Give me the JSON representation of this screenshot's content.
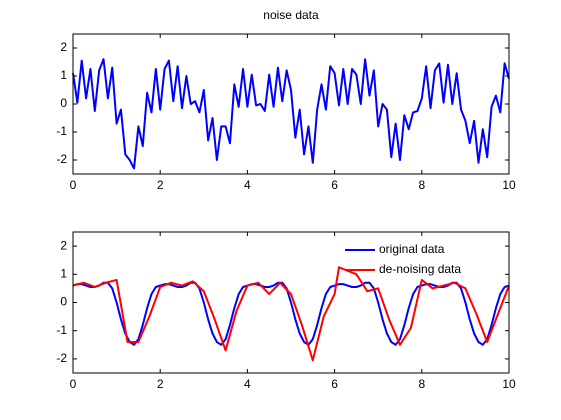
{
  "chart_data": [
    {
      "type": "line",
      "title": "noise data",
      "x": [
        0,
        0.1,
        0.2,
        0.3,
        0.4,
        0.5,
        0.6,
        0.7,
        0.8,
        0.9,
        1,
        1.1,
        1.2,
        1.3,
        1.4,
        1.5,
        1.6,
        1.7,
        1.8,
        1.9,
        2,
        2.1,
        2.2,
        2.3,
        2.4,
        2.5,
        2.6,
        2.7,
        2.8,
        2.9,
        3,
        3.1,
        3.2,
        3.3,
        3.4,
        3.5,
        3.6,
        3.7,
        3.8,
        3.9,
        4,
        4.1,
        4.2,
        4.3,
        4.4,
        4.5,
        4.6,
        4.7,
        4.8,
        4.9,
        5,
        5.1,
        5.2,
        5.3,
        5.4,
        5.5,
        5.6,
        5.7,
        5.8,
        5.9,
        6,
        6.1,
        6.2,
        6.3,
        6.4,
        6.5,
        6.6,
        6.7,
        6.8,
        6.9,
        7,
        7.1,
        7.2,
        7.3,
        7.4,
        7.5,
        7.6,
        7.7,
        7.8,
        7.9,
        8,
        8.1,
        8.2,
        8.3,
        8.4,
        8.5,
        8.6,
        8.7,
        8.8,
        8.9,
        9,
        9.1,
        9.2,
        9.3,
        9.4,
        9.5,
        9.6,
        9.7,
        9.8,
        9.9,
        10
      ],
      "series": [
        {
          "color": "#0000ff",
          "values": [
            1.1,
            0.05,
            1.55,
            0.2,
            1.25,
            -0.25,
            1.2,
            1.6,
            0.2,
            1.3,
            -0.7,
            -0.2,
            -1.8,
            -2.0,
            -2.3,
            -0.8,
            -1.5,
            0.4,
            -0.3,
            1.25,
            -0.2,
            1.25,
            1.55,
            0.1,
            1.35,
            -0.15,
            1.0,
            0.0,
            0.1,
            -0.3,
            0.5,
            -1.3,
            -0.5,
            -2.0,
            -0.8,
            -0.8,
            -1.4,
            0.7,
            -0.1,
            1.25,
            -0.1,
            1.05,
            -0.05,
            0.0,
            -0.25,
            1.05,
            -0.1,
            1.3,
            0.1,
            1.2,
            0.5,
            -1.2,
            -0.2,
            -1.8,
            -0.8,
            -2.1,
            -0.2,
            0.7,
            -0.2,
            1.35,
            1.1,
            -0.05,
            1.25,
            0.0,
            1.25,
            1.05,
            0.0,
            1.6,
            0.3,
            1.2,
            -0.8,
            0.0,
            -0.2,
            -1.9,
            -0.7,
            -2.0,
            -0.4,
            -0.9,
            -0.3,
            -0.25,
            0.2,
            1.35,
            -0.15,
            1.2,
            1.45,
            0.05,
            1.4,
            0.0,
            1.1,
            -0.2,
            -0.6,
            -1.4,
            -0.6,
            -2.1,
            -0.9,
            -1.9,
            -0.1,
            0.3,
            -0.3,
            1.45,
            0.9
          ]
        }
      ],
      "xlim": [
        0,
        10
      ],
      "xticks": [
        0,
        2,
        4,
        6,
        8,
        10
      ],
      "ylim": [
        -2.5,
        2.5
      ],
      "yticks": [
        -2,
        -1,
        0,
        1,
        2
      ]
    },
    {
      "type": "line",
      "x": [
        0,
        0.1,
        0.2,
        0.3,
        0.4,
        0.5,
        0.6,
        0.7,
        0.8,
        0.9,
        1,
        1.1,
        1.2,
        1.3,
        1.4,
        1.5,
        1.6,
        1.7,
        1.8,
        1.9,
        2,
        2.1,
        2.2,
        2.3,
        2.4,
        2.5,
        2.6,
        2.7,
        2.8,
        2.9,
        3,
        3.1,
        3.2,
        3.3,
        3.4,
        3.5,
        3.6,
        3.7,
        3.8,
        3.9,
        4,
        4.1,
        4.2,
        4.3,
        4.4,
        4.5,
        4.6,
        4.7,
        4.8,
        4.9,
        5,
        5.1,
        5.2,
        5.3,
        5.4,
        5.5,
        5.6,
        5.7,
        5.8,
        5.9,
        6,
        6.1,
        6.2,
        6.3,
        6.4,
        6.5,
        6.6,
        6.7,
        6.8,
        6.9,
        7,
        7.1,
        7.2,
        7.3,
        7.4,
        7.5,
        7.6,
        7.7,
        7.8,
        7.9,
        8,
        8.1,
        8.2,
        8.3,
        8.4,
        8.5,
        8.6,
        8.7,
        8.8,
        8.9,
        9,
        9.1,
        9.2,
        9.3,
        9.4,
        9.5,
        9.6,
        9.7,
        9.8,
        9.9,
        10
      ],
      "series": [
        {
          "name": "original data",
          "color": "#0000ff",
          "values": [
            0.6,
            0.65,
            0.65,
            0.6,
            0.55,
            0.55,
            0.6,
            0.7,
            0.7,
            0.5,
            0,
            -0.6,
            -1.1,
            -1.4,
            -1.5,
            -1.3,
            -0.8,
            -0.2,
            0.3,
            0.55,
            0.6,
            0.65,
            0.65,
            0.6,
            0.55,
            0.55,
            0.6,
            0.7,
            0.7,
            0.5,
            0,
            -0.6,
            -1.1,
            -1.4,
            -1.5,
            -1.3,
            -0.8,
            -0.2,
            0.3,
            0.55,
            0.6,
            0.65,
            0.65,
            0.6,
            0.55,
            0.55,
            0.6,
            0.7,
            0.7,
            0.5,
            0,
            -0.6,
            -1.1,
            -1.4,
            -1.5,
            -1.3,
            -0.8,
            -0.2,
            0.3,
            0.55,
            0.6,
            0.65,
            0.65,
            0.6,
            0.55,
            0.55,
            0.6,
            0.7,
            0.7,
            0.5,
            0,
            -0.6,
            -1.1,
            -1.4,
            -1.5,
            -1.3,
            -0.8,
            -0.2,
            0.3,
            0.55,
            0.6,
            0.65,
            0.65,
            0.6,
            0.55,
            0.55,
            0.6,
            0.7,
            0.7,
            0.5,
            0,
            -0.6,
            -1.1,
            -1.4,
            -1.5,
            -1.3,
            -0.8,
            -0.2,
            0.3,
            0.55,
            0.6
          ]
        },
        {
          "name": "de-noising data",
          "color": "#ff0000",
          "x": [
            0,
            0.25,
            0.5,
            0.75,
            1,
            1.25,
            1.5,
            1.75,
            2,
            2.25,
            2.5,
            2.75,
            3,
            3.25,
            3.5,
            3.75,
            4,
            4.25,
            4.5,
            4.75,
            5,
            5.25,
            5.5,
            5.75,
            6,
            6.1,
            6.5,
            6.75,
            7,
            7.25,
            7.5,
            7.75,
            8,
            8.25,
            8.5,
            8.75,
            9,
            9.25,
            9.5,
            9.75,
            10
          ],
          "values": [
            0.6,
            0.7,
            0.55,
            0.7,
            0.8,
            -1.4,
            -1.4,
            -0.5,
            0.55,
            0.7,
            0.6,
            0.75,
            0.4,
            -0.6,
            -1.7,
            -0.3,
            0.6,
            0.7,
            0.3,
            0.7,
            0.3,
            -0.8,
            -2.05,
            -0.5,
            0.3,
            1.25,
            1.0,
            0.4,
            0.5,
            -0.6,
            -1.5,
            -0.9,
            0.8,
            0.5,
            0.6,
            0.7,
            0.5,
            -0.4,
            -1.4,
            -0.4,
            0.6
          ]
        }
      ],
      "xlim": [
        0,
        10
      ],
      "xticks": [
        0,
        2,
        4,
        6,
        8,
        10
      ],
      "ylim": [
        -2.5,
        2.5
      ],
      "yticks": [
        -2,
        -1,
        0,
        1,
        2
      ],
      "legend": "northeast"
    }
  ]
}
